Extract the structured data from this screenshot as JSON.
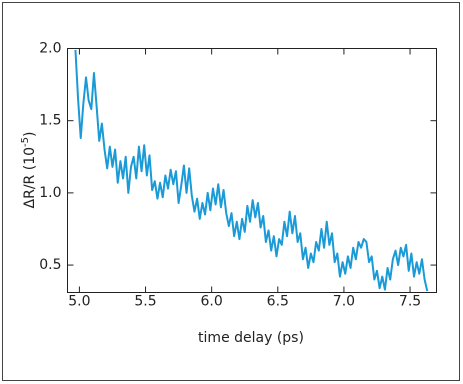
{
  "chart_data": {
    "type": "line",
    "xlabel": "time delay (ps)",
    "ylabel": {
      "text": "ΔR/R (10",
      "superscript": "-5",
      "suffix": ")"
    },
    "xlim": [
      4.91,
      7.7
    ],
    "ylim": [
      0.31,
      2.0
    ],
    "xticks": [
      {
        "value": 5,
        "label": "5.0"
      },
      5.5,
      {
        "value": 6,
        "label": "6.0"
      },
      6.5,
      {
        "value": 7,
        "label": "7.0"
      },
      7.5
    ],
    "yticks": [
      {
        "value": 0.5,
        "label": "0.5"
      },
      {
        "value": 1,
        "label": "1.0"
      },
      1.5,
      {
        "value": 2,
        "label": "2.0"
      }
    ],
    "series": [
      {
        "color": "#1a9ad6",
        "x": [
          4.97,
          4.99,
          5.01,
          5.03,
          5.05,
          5.07,
          5.09,
          5.11,
          5.13,
          5.15,
          5.17,
          5.19,
          5.21,
          5.23,
          5.25,
          5.27,
          5.29,
          5.31,
          5.33,
          5.35,
          5.37,
          5.39,
          5.41,
          5.43,
          5.45,
          5.47,
          5.49,
          5.51,
          5.53,
          5.55,
          5.57,
          5.59,
          5.61,
          5.63,
          5.65,
          5.67,
          5.69,
          5.71,
          5.73,
          5.75,
          5.77,
          5.79,
          5.81,
          5.83,
          5.85,
          5.87,
          5.89,
          5.91,
          5.93,
          5.95,
          5.97,
          5.99,
          6.01,
          6.03,
          6.05,
          6.07,
          6.09,
          6.11,
          6.13,
          6.15,
          6.17,
          6.19,
          6.21,
          6.23,
          6.25,
          6.27,
          6.29,
          6.31,
          6.33,
          6.35,
          6.37,
          6.39,
          6.41,
          6.43,
          6.45,
          6.47,
          6.49,
          6.51,
          6.53,
          6.55,
          6.57,
          6.59,
          6.61,
          6.63,
          6.65,
          6.67,
          6.69,
          6.71,
          6.73,
          6.75,
          6.77,
          6.79,
          6.81,
          6.83,
          6.85,
          6.87,
          6.89,
          6.91,
          6.93,
          6.95,
          6.97,
          6.99,
          7.01,
          7.03,
          7.05,
          7.07,
          7.09,
          7.11,
          7.13,
          7.15,
          7.17,
          7.19,
          7.21,
          7.23,
          7.25,
          7.27,
          7.29,
          7.31,
          7.33,
          7.35,
          7.37,
          7.39,
          7.41,
          7.43,
          7.45,
          7.47,
          7.49,
          7.51,
          7.53,
          7.55,
          7.57,
          7.59,
          7.61,
          7.63
        ],
        "values": [
          1.99,
          1.65,
          1.38,
          1.62,
          1.8,
          1.64,
          1.58,
          1.83,
          1.6,
          1.36,
          1.48,
          1.3,
          1.17,
          1.32,
          1.18,
          1.3,
          1.07,
          1.22,
          1.1,
          1.25,
          1.0,
          1.18,
          1.25,
          1.1,
          1.32,
          1.15,
          1.33,
          1.12,
          1.26,
          1.02,
          1.08,
          0.96,
          1.07,
          0.97,
          1.12,
          1.03,
          1.16,
          1.06,
          1.15,
          0.93,
          1.05,
          1.19,
          1.0,
          1.17,
          0.98,
          0.87,
          0.96,
          0.82,
          0.93,
          0.85,
          1.0,
          0.88,
          1.03,
          0.92,
          1.06,
          0.9,
          1.02,
          0.86,
          0.77,
          0.86,
          0.7,
          0.8,
          0.68,
          0.82,
          0.73,
          0.91,
          0.8,
          0.95,
          0.83,
          0.93,
          0.76,
          0.84,
          0.66,
          0.74,
          0.6,
          0.7,
          0.56,
          0.68,
          0.64,
          0.8,
          0.7,
          0.87,
          0.72,
          0.84,
          0.66,
          0.72,
          0.54,
          0.62,
          0.48,
          0.58,
          0.52,
          0.66,
          0.6,
          0.75,
          0.62,
          0.8,
          0.64,
          0.72,
          0.52,
          0.58,
          0.42,
          0.52,
          0.44,
          0.56,
          0.48,
          0.62,
          0.54,
          0.66,
          0.62,
          0.68,
          0.66,
          0.52,
          0.56,
          0.4,
          0.46,
          0.34,
          0.42,
          0.33,
          0.48,
          0.4,
          0.54,
          0.6,
          0.5,
          0.62,
          0.56,
          0.64,
          0.46,
          0.58,
          0.42,
          0.52,
          0.44,
          0.54,
          0.4,
          0.32
        ]
      }
    ]
  }
}
